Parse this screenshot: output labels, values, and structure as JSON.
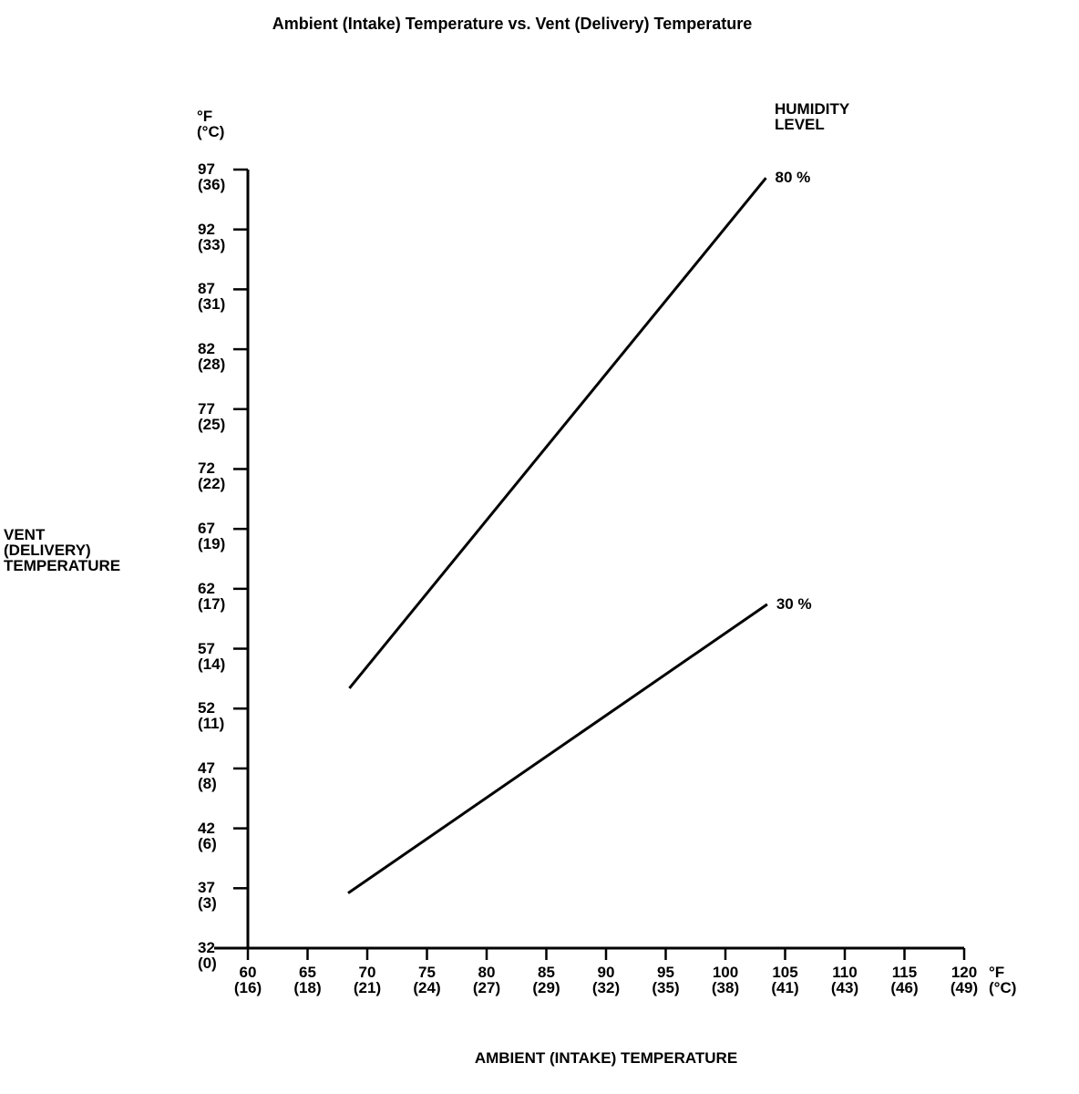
{
  "chart_data": {
    "type": "line",
    "title": "Ambient (Intake) Temperature vs. Vent (Delivery) Temperature",
    "xlabel": "AMBIENT (INTAKE) TEMPERATURE",
    "ylabel": "VENT\n(DELIVERY)\nTEMPERATURE",
    "y_unit_label": "°F\n(°C)",
    "x_unit_label": "°F\n(°C)",
    "legend_title": "HUMIDITY\nLEVEL",
    "legend_position": "line-end-labels-right",
    "grid": false,
    "background": "#ffffff",
    "line_color": "#000000",
    "xlim": [
      60,
      120
    ],
    "ylim": [
      32,
      97
    ],
    "x_ticks": [
      {
        "f": 60,
        "c": 16
      },
      {
        "f": 65,
        "c": 18
      },
      {
        "f": 70,
        "c": 21
      },
      {
        "f": 75,
        "c": 24
      },
      {
        "f": 80,
        "c": 27
      },
      {
        "f": 85,
        "c": 29
      },
      {
        "f": 90,
        "c": 32
      },
      {
        "f": 95,
        "c": 35
      },
      {
        "f": 100,
        "c": 38
      },
      {
        "f": 105,
        "c": 41
      },
      {
        "f": 110,
        "c": 43
      },
      {
        "f": 115,
        "c": 46
      },
      {
        "f": 120,
        "c": 49
      }
    ],
    "y_ticks": [
      {
        "f": 32,
        "c": 0
      },
      {
        "f": 37,
        "c": 3
      },
      {
        "f": 42,
        "c": 6
      },
      {
        "f": 47,
        "c": 8
      },
      {
        "f": 52,
        "c": 11
      },
      {
        "f": 57,
        "c": 14
      },
      {
        "f": 62,
        "c": 17
      },
      {
        "f": 67,
        "c": 19
      },
      {
        "f": 72,
        "c": 22
      },
      {
        "f": 77,
        "c": 25
      },
      {
        "f": 82,
        "c": 28
      },
      {
        "f": 87,
        "c": 31
      },
      {
        "f": 92,
        "c": 33
      },
      {
        "f": 97,
        "c": 36
      }
    ],
    "series": [
      {
        "name": "80 %",
        "humidity_percent": 80,
        "points_f": [
          [
            68.5,
            53.7
          ],
          [
            103.4,
            96.3
          ]
        ]
      },
      {
        "name": "30 %",
        "humidity_percent": 30,
        "points_f": [
          [
            68.4,
            36.6
          ],
          [
            103.5,
            60.7
          ]
        ]
      }
    ]
  }
}
